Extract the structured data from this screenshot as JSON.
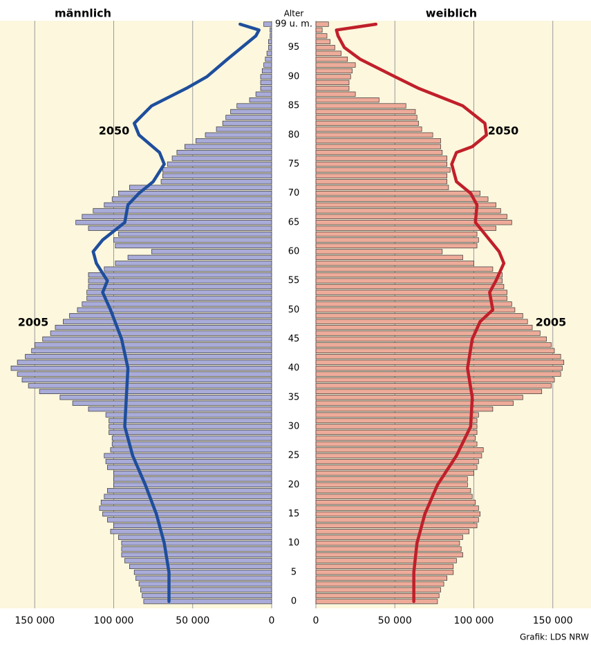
{
  "chart_data": {
    "type": "population_pyramid",
    "left_label": "männlich",
    "right_label": "weiblich",
    "age_axis_label": "Alter",
    "source": "Grafik: LDS NRW",
    "ylim": [
      0,
      99
    ],
    "yticks": [
      0,
      5,
      10,
      15,
      20,
      25,
      30,
      35,
      40,
      45,
      50,
      55,
      60,
      65,
      70,
      75,
      80,
      85,
      90,
      95,
      {
        "value": 99,
        "label": "99 u. m."
      }
    ],
    "xlim": [
      0,
      172000
    ],
    "xticks": [
      {
        "value": 150000,
        "label": "150 000"
      },
      {
        "value": 100000,
        "label": "100 000"
      },
      {
        "value": 50000,
        "label": "50 000"
      },
      0
    ],
    "grid": true,
    "series": [
      {
        "name": "2005",
        "side": "male",
        "kind": "bar",
        "color": "#a9acd9",
        "values": [
          81000,
          82000,
          83000,
          84000,
          86000,
          87000,
          90000,
          93000,
          95000,
          95000,
          95000,
          97000,
          102000,
          100000,
          104000,
          107000,
          109000,
          108000,
          106000,
          104000,
          100000,
          100000,
          100000,
          104000,
          105000,
          106000,
          102000,
          101000,
          101000,
          103000,
          103000,
          103000,
          105000,
          116000,
          126000,
          134000,
          147000,
          154000,
          158000,
          161000,
          165000,
          161000,
          156000,
          152000,
          150000,
          145000,
          140000,
          137000,
          132000,
          128000,
          123000,
          120000,
          117000,
          117000,
          116000,
          116000,
          116000,
          106000,
          99000,
          91000,
          76000,
          99000,
          100000,
          97000,
          116000,
          124000,
          120000,
          113000,
          106000,
          101000,
          97000,
          90000,
          70000,
          69000,
          69000,
          66000,
          63000,
          60000,
          55000,
          48000,
          42000,
          35000,
          31000,
          29000,
          26000,
          22000,
          14000,
          10000,
          7000,
          7000,
          7000,
          6000,
          5000,
          4000,
          3000,
          2000,
          2000,
          1000,
          1000,
          5000
        ]
      },
      {
        "name": "2005",
        "side": "female",
        "kind": "bar",
        "color": "#eeab99",
        "values": [
          77000,
          78000,
          79000,
          81000,
          83000,
          87000,
          87000,
          89000,
          93000,
          92000,
          91000,
          93000,
          97000,
          102000,
          103000,
          104000,
          103000,
          101000,
          99000,
          98000,
          96000,
          96000,
          100000,
          102000,
          103000,
          105000,
          106000,
          102000,
          101000,
          102000,
          102000,
          102000,
          103000,
          112000,
          125000,
          131000,
          143000,
          149000,
          151000,
          155000,
          156000,
          157000,
          155000,
          151000,
          149000,
          146000,
          142000,
          137000,
          134000,
          131000,
          126000,
          124000,
          121000,
          121000,
          119000,
          118000,
          118000,
          112000,
          100000,
          93000,
          80000,
          102000,
          103000,
          102000,
          114000,
          124000,
          121000,
          117000,
          114000,
          109000,
          104000,
          84000,
          83000,
          83000,
          85000,
          83000,
          83000,
          80000,
          79000,
          79000,
          74000,
          67000,
          65000,
          64000,
          63000,
          57000,
          40000,
          25000,
          21000,
          21000,
          22000,
          23000,
          25000,
          20000,
          16000,
          12000,
          9000,
          7000,
          4000,
          8000
        ]
      },
      {
        "name": "2050",
        "side": "male",
        "kind": "line",
        "color": "#1f4e9c",
        "ages": [
          0,
          5,
          10,
          15,
          20,
          25,
          30,
          35,
          40,
          45,
          50,
          53,
          55,
          58,
          60,
          62,
          65,
          68,
          70,
          72,
          75,
          77,
          80,
          82,
          85,
          88,
          90,
          93,
          95,
          97,
          98,
          99
        ],
        "values": [
          65000,
          65000,
          68000,
          73000,
          80000,
          88000,
          93000,
          92000,
          91000,
          95000,
          102000,
          107000,
          104000,
          111000,
          113000,
          107000,
          93000,
          91000,
          84000,
          75000,
          68000,
          71000,
          84000,
          87000,
          76000,
          54000,
          41000,
          28000,
          19000,
          10000,
          8000,
          20000
        ]
      },
      {
        "name": "2050",
        "side": "female",
        "kind": "line",
        "color": "#c0202a",
        "ages": [
          0,
          5,
          10,
          15,
          20,
          25,
          30,
          35,
          40,
          45,
          48,
          50,
          53,
          55,
          58,
          60,
          62,
          65,
          68,
          70,
          72,
          75,
          77,
          78,
          80,
          82,
          85,
          88,
          90,
          93,
          95,
          97,
          98,
          99
        ],
        "values": [
          62000,
          62000,
          64000,
          69000,
          77000,
          89000,
          98000,
          99000,
          96000,
          99000,
          104000,
          112000,
          110000,
          114000,
          119000,
          116000,
          110000,
          101000,
          102000,
          98000,
          89000,
          86000,
          89000,
          99000,
          108000,
          107000,
          93000,
          65000,
          50000,
          28000,
          18000,
          14000,
          13000,
          38000
        ]
      }
    ]
  }
}
